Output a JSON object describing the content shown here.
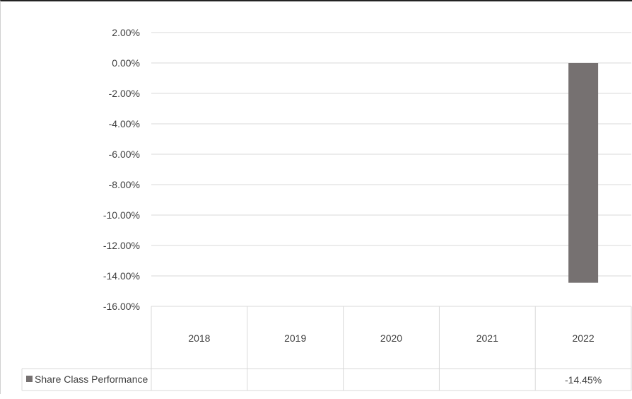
{
  "chart_data": {
    "type": "bar",
    "categories": [
      "2018",
      "2019",
      "2020",
      "2021",
      "2022"
    ],
    "series": [
      {
        "name": "Share Class Performance",
        "values": [
          null,
          null,
          null,
          null,
          -14.45
        ],
        "value_labels": [
          "",
          "",
          "",
          "",
          "-14.45%"
        ],
        "color": "#767171"
      }
    ],
    "ylim": [
      -16,
      2
    ],
    "y_ticks": [
      2,
      0,
      -2,
      -4,
      -6,
      -8,
      -10,
      -12,
      -14,
      -16
    ],
    "y_tick_labels": [
      "2.00%",
      "0.00%",
      "-2.00%",
      "-4.00%",
      "-6.00%",
      "-8.00%",
      "-10.00%",
      "-12.00%",
      "-14.00%",
      "-16.00%"
    ],
    "grid": true,
    "data_table": true,
    "legend_position": "data-table-left",
    "colors": {
      "gridline": "#d9d9d9",
      "table_border": "#d9d9d9",
      "text": "#404040"
    }
  }
}
